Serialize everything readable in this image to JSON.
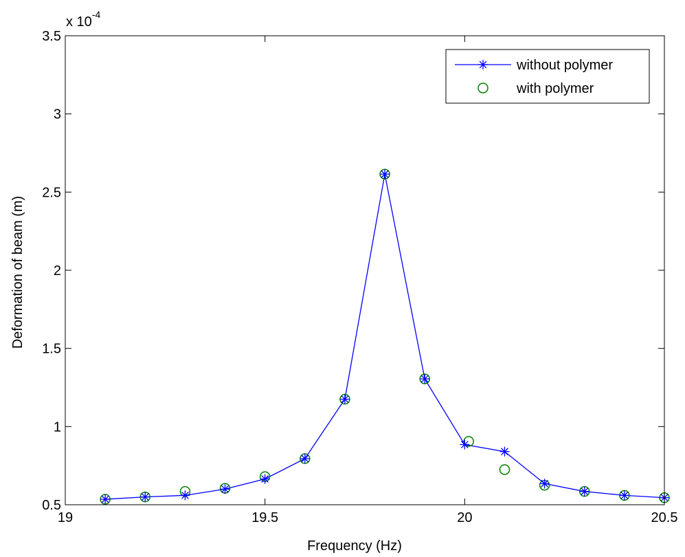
{
  "chart_data": {
    "type": "line",
    "xlabel": "Frequency (Hz)",
    "ylabel": "Deformation of beam (m)",
    "y_multiplier_label": "x 10",
    "y_multiplier_exponent": "-4",
    "xlim": [
      19,
      20.5
    ],
    "ylim": [
      0.5,
      3.5
    ],
    "x_ticks": [
      19,
      19.5,
      20,
      20.5
    ],
    "x_tick_labels": [
      "19",
      "19.5",
      "20",
      "20.5"
    ],
    "y_ticks": [
      0.5,
      1,
      1.5,
      2,
      2.5,
      3,
      3.5
    ],
    "y_tick_labels": [
      "0.5",
      "1",
      "1.5",
      "2",
      "2.5",
      "3",
      "3.5"
    ],
    "grid": false,
    "legend_position": "top-right",
    "series": [
      {
        "name": "without polymer",
        "style": "line-star",
        "color": "#0000ff",
        "x": [
          19.1,
          19.2,
          19.3,
          19.4,
          19.5,
          19.6,
          19.7,
          19.8,
          19.9,
          20.0,
          20.1,
          20.2,
          20.3,
          20.4,
          20.5
        ],
        "y": [
          0.535,
          0.55,
          0.56,
          0.6,
          0.665,
          0.795,
          1.175,
          2.615,
          1.305,
          0.885,
          0.84,
          0.635,
          0.585,
          0.56,
          0.545
        ]
      },
      {
        "name": "with polymer",
        "style": "circle",
        "color": "#008000",
        "x": [
          19.1,
          19.2,
          19.3,
          19.4,
          19.5,
          19.6,
          19.7,
          19.8,
          19.9,
          20.01,
          20.1,
          20.2,
          20.3,
          20.4,
          20.5
        ],
        "y": [
          0.535,
          0.55,
          0.585,
          0.605,
          0.68,
          0.795,
          1.175,
          2.615,
          1.305,
          0.905,
          0.725,
          0.625,
          0.585,
          0.56,
          0.545
        ]
      }
    ]
  }
}
